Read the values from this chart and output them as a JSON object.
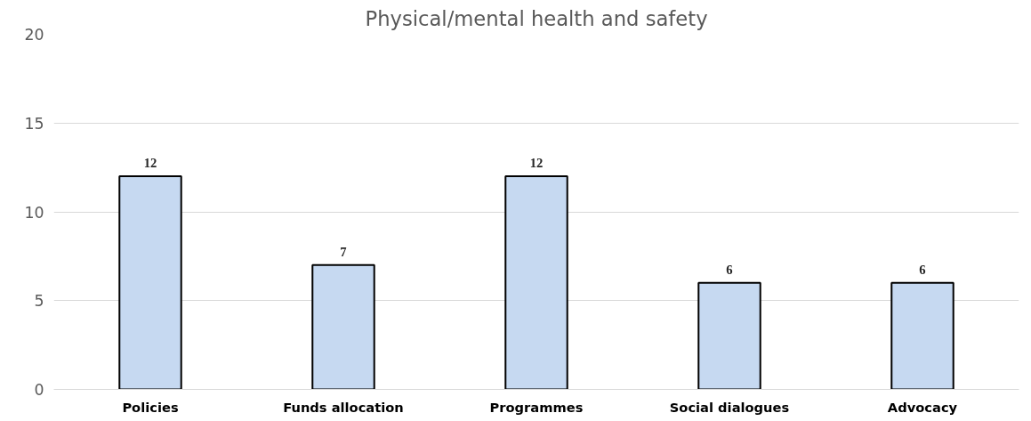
{
  "chart_data": {
    "type": "bar",
    "title": "Physical/mental health and safety",
    "categories": [
      "Policies",
      "Funds allocation",
      "Programmes",
      "Social dialogues",
      "Advocacy"
    ],
    "values": [
      12,
      7,
      12,
      6,
      6
    ],
    "color": "#c6d9f1",
    "ylim": [
      0,
      20
    ],
    "yticks": [
      0,
      5,
      10,
      15,
      20
    ],
    "grid": "y",
    "data_labels": true
  }
}
